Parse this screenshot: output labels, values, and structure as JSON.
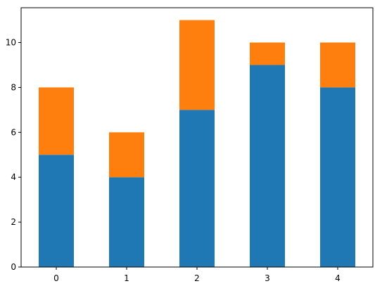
{
  "chart_data": {
    "type": "bar",
    "stacked": true,
    "categories": [
      "0",
      "1",
      "2",
      "3",
      "4"
    ],
    "series": [
      {
        "values": [
          5,
          4,
          7,
          9,
          8
        ],
        "color": "#1f77b4"
      },
      {
        "values": [
          3,
          2,
          4,
          1,
          2
        ],
        "color": "#ff7f0e"
      }
    ],
    "title": "",
    "xlabel": "",
    "ylabel": "",
    "ylim": [
      0,
      11.55
    ],
    "yticks": [
      0,
      2,
      4,
      6,
      8,
      10
    ],
    "grid": false,
    "legend": "none"
  }
}
